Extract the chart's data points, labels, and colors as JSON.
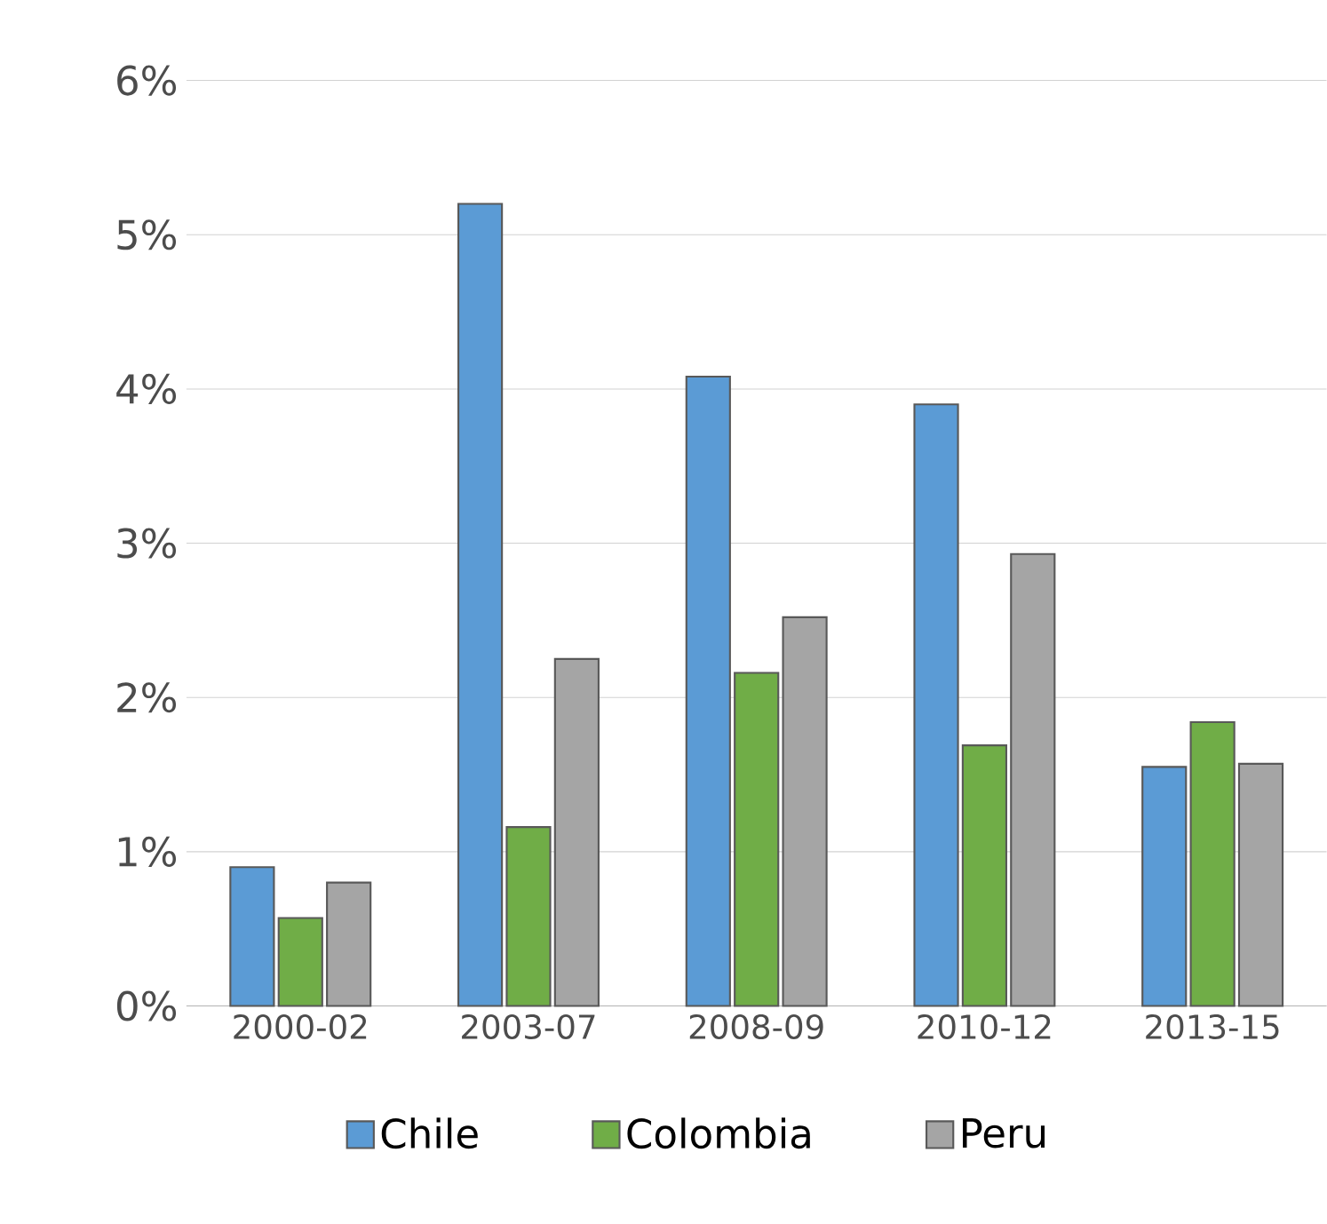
{
  "chart_data": {
    "type": "bar",
    "categories": [
      "2000-02",
      "2003-07",
      "2008-09",
      "2010-12",
      "2013-15"
    ],
    "series": [
      {
        "name": "Chile",
        "color": "#5b9bd5",
        "values": [
          0.9,
          5.2,
          4.08,
          3.9,
          1.55
        ]
      },
      {
        "name": "Colombia",
        "color": "#70ad47",
        "values": [
          0.57,
          1.16,
          2.16,
          1.69,
          1.84
        ]
      },
      {
        "name": "Peru",
        "color": "#a5a5a5",
        "values": [
          0.8,
          2.25,
          2.52,
          2.93,
          1.57
        ]
      }
    ],
    "ylim": [
      0,
      6
    ],
    "yticks": [
      {
        "value": 0,
        "label": "0%"
      },
      {
        "value": 1,
        "label": "1%"
      },
      {
        "value": 2,
        "label": "2%"
      },
      {
        "value": 3,
        "label": "3%"
      },
      {
        "value": 4,
        "label": "4%"
      },
      {
        "value": 5,
        "label": "5%"
      },
      {
        "value": 6,
        "label": "6%"
      }
    ],
    "grid": "y",
    "legend": "bottom"
  }
}
